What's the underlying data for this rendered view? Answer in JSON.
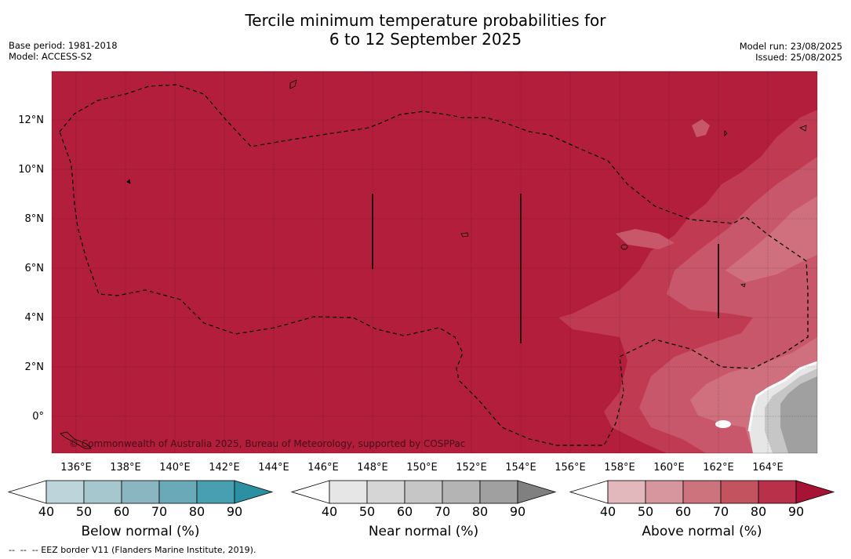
{
  "header": {
    "title_line1": "Tercile minimum temperature probabilities for",
    "title_line2": "6 to 12 September 2025",
    "base_period": "Base period: 1981-2018",
    "model": "Model: ACCESS-S2",
    "model_run": "Model run: 23/08/2025",
    "issued": "Issued: 25/08/2025"
  },
  "map": {
    "lat_labels": [
      "12°N",
      "10°N",
      "8°N",
      "6°N",
      "4°N",
      "2°N",
      "0°"
    ],
    "lon_labels": [
      "136°E",
      "138°E",
      "140°E",
      "142°E",
      "144°E",
      "146°E",
      "148°E",
      "150°E",
      "152°E",
      "154°E",
      "156°E",
      "158°E",
      "160°E",
      "162°E",
      "164°E"
    ],
    "watermark": "© Commonwealth of Australia 2025, Bureau of Meteorology, supported by COSPPac",
    "background_color": "#b21e3b"
  },
  "colorbars": [
    {
      "label": "Below normal (%)",
      "ticks": [
        "40",
        "50",
        "60",
        "70",
        "80",
        "90"
      ],
      "colors": [
        "#ffffff",
        "#bdd4da",
        "#a6c7ce",
        "#89b6c1",
        "#6aaab8",
        "#479fb1",
        "#2c8fa2"
      ]
    },
    {
      "label": "Near normal (%)",
      "ticks": [
        "40",
        "50",
        "60",
        "70",
        "80",
        "90"
      ],
      "colors": [
        "#ffffff",
        "#e6e6e6",
        "#d6d6d6",
        "#c6c6c6",
        "#b4b4b4",
        "#a0a0a0",
        "#808080"
      ]
    },
    {
      "label": "Above normal (%)",
      "ticks": [
        "40",
        "50",
        "60",
        "70",
        "80",
        "90"
      ],
      "colors": [
        "#ffffff",
        "#e2b8bd",
        "#d7959d",
        "#cd737e",
        "#c3535f",
        "#b8304a",
        "#a61335"
      ]
    }
  ],
  "footnote": {
    "marker": "--  --  --",
    "text": " EEZ border V11 (Flanders Marine Institute, 2019)."
  }
}
